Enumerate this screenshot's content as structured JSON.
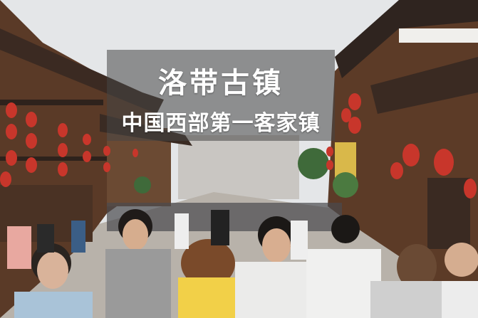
{
  "overlay": {
    "title": "洛带古镇",
    "subtitle": "中国西部第一客家镇"
  },
  "scene": {
    "description_icon": "photo-icon",
    "colors": {
      "sky": "#e6e8ea",
      "wood": "#5b3a26",
      "lantern": "#c8362b",
      "street": "#b9b4ad",
      "banner": "#464646"
    }
  }
}
